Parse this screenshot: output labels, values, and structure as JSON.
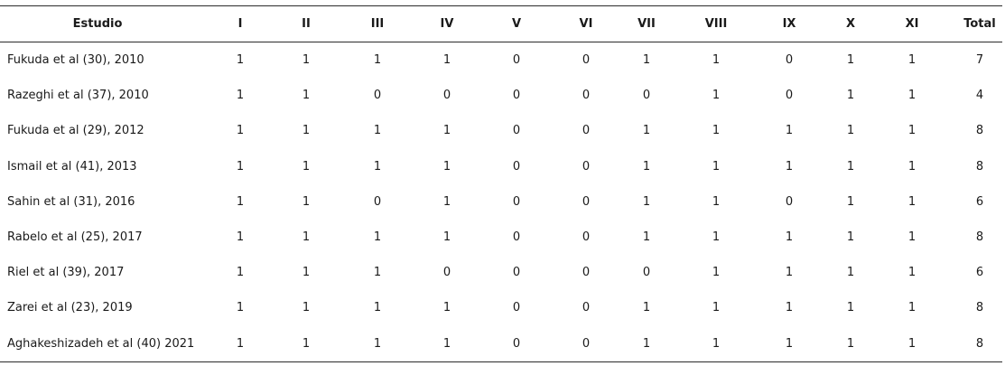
{
  "table": {
    "headers": [
      "Estudio",
      "I",
      "II",
      "III",
      "IV",
      "V",
      "VI",
      "VII",
      "VIII",
      "IX",
      "X",
      "XI",
      "Total"
    ],
    "rows": [
      {
        "study": "Fukuda et al (30), 2010",
        "scores": [
          "1",
          "1",
          "1",
          "1",
          "0",
          "0",
          "1",
          "1",
          "0",
          "1",
          "1"
        ],
        "total": "7"
      },
      {
        "study": "Razeghi et al (37), 2010",
        "scores": [
          "1",
          "1",
          "0",
          "0",
          "0",
          "0",
          "0",
          "1",
          "0",
          "1",
          "1"
        ],
        "total": "4"
      },
      {
        "study": "Fukuda et al (29), 2012",
        "scores": [
          "1",
          "1",
          "1",
          "1",
          "0",
          "0",
          "1",
          "1",
          "1",
          "1",
          "1"
        ],
        "total": "8"
      },
      {
        "study": "Ismail et al (41), 2013",
        "scores": [
          "1",
          "1",
          "1",
          "1",
          "0",
          "0",
          "1",
          "1",
          "1",
          "1",
          "1"
        ],
        "total": "8"
      },
      {
        "study": "Sahin et al (31), 2016",
        "scores": [
          "1",
          "1",
          "0",
          "1",
          "0",
          "0",
          "1",
          "1",
          "0",
          "1",
          "1"
        ],
        "total": "6"
      },
      {
        "study": "Rabelo et al (25), 2017",
        "scores": [
          "1",
          "1",
          "1",
          "1",
          "0",
          "0",
          "1",
          "1",
          "1",
          "1",
          "1"
        ],
        "total": "8"
      },
      {
        "study": "Riel et al (39), 2017",
        "scores": [
          "1",
          "1",
          "1",
          "0",
          "0",
          "0",
          "0",
          "1",
          "1",
          "1",
          "1"
        ],
        "total": "6"
      },
      {
        "study": "Zarei et al (23),  2019",
        "scores": [
          "1",
          "1",
          "1",
          "1",
          "0",
          "0",
          "1",
          "1",
          "1",
          "1",
          "1"
        ],
        "total": "8"
      },
      {
        "study": "Aghakeshizadeh et al (40)  2021",
        "scores": [
          "1",
          "1",
          "1",
          "1",
          "0",
          "0",
          "1",
          "1",
          "1",
          "1",
          "1"
        ],
        "total": "8"
      }
    ]
  }
}
